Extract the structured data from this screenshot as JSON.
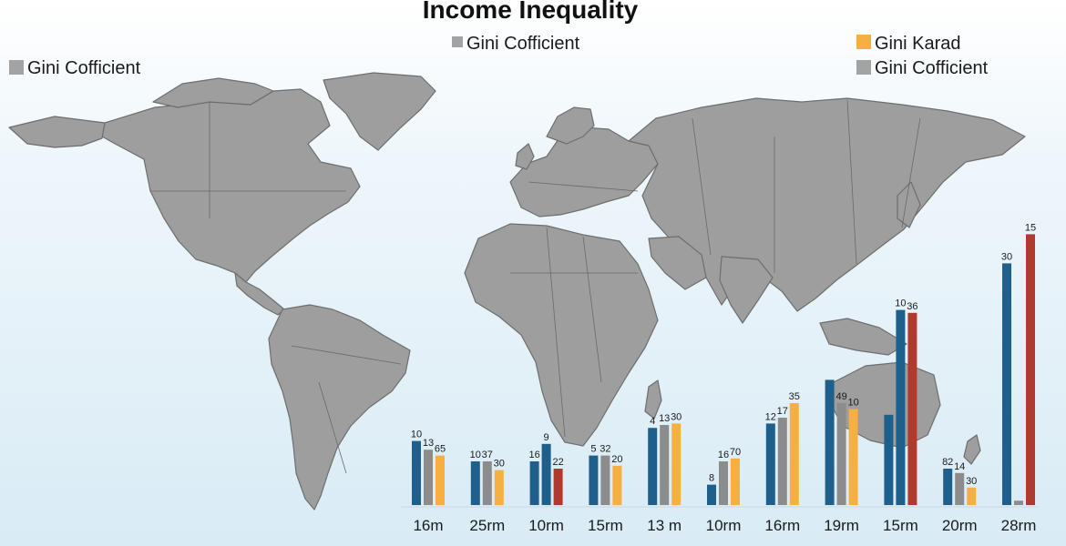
{
  "chart_data": {
    "type": "bar",
    "title": "Income Inequality",
    "legend": [
      {
        "name": "Gini Cofficient",
        "color": "#a3a3a3",
        "position": "top-left"
      },
      {
        "name": "Gini Cofficient",
        "color": "#a3a3a3",
        "position": "top-center"
      },
      {
        "name": "Gini Karad",
        "color": "#f5b041",
        "position": "top-right"
      },
      {
        "name": "Gini Cofficient",
        "color": "#a3a3a3",
        "position": "top-right"
      }
    ],
    "categories": [
      "16m",
      "25rm",
      "10rm",
      "15rm",
      "13 m",
      "10rm",
      "16rm",
      "19rm",
      "15rm",
      "20rm",
      "28rm"
    ],
    "groups": [
      {
        "bars": [
          {
            "value": 22,
            "color": "#1f5f8b",
            "label": "10"
          },
          {
            "value": 19,
            "color": "#8c8c8c",
            "label": "13"
          },
          {
            "value": 17,
            "color": "#f5b041",
            "label": "65"
          }
        ]
      },
      {
        "bars": [
          {
            "value": 15,
            "color": "#1f5f8b",
            "label": "10"
          },
          {
            "value": 15,
            "color": "#8c8c8c",
            "label": "37"
          },
          {
            "value": 12,
            "color": "#f5b041",
            "label": "30"
          }
        ]
      },
      {
        "bars": [
          {
            "value": 15,
            "color": "#1f5f8b",
            "label": "16"
          },
          {
            "value": 21,
            "color": "#1f5f8b",
            "label": "9"
          },
          {
            "value": 12.5,
            "color": "#b03a2e",
            "label": "22"
          }
        ]
      },
      {
        "bars": [
          {
            "value": 17,
            "color": "#1f5f8b",
            "label": "5"
          },
          {
            "value": 17,
            "color": "#8c8c8c",
            "label": "32"
          },
          {
            "value": 13.5,
            "color": "#f5b041",
            "label": "20"
          }
        ]
      },
      {
        "bars": [
          {
            "value": 26.5,
            "color": "#1f5f8b",
            "label": "4"
          },
          {
            "value": 27.5,
            "color": "#8c8c8c",
            "label": "13"
          },
          {
            "value": 28,
            "color": "#f5b041",
            "label": "30"
          }
        ]
      },
      {
        "bars": [
          {
            "value": 7,
            "color": "#1f5f8b",
            "label": "8"
          },
          {
            "value": 15,
            "color": "#8c8c8c",
            "label": "16"
          },
          {
            "value": 16,
            "color": "#f5b041",
            "label": "70"
          }
        ]
      },
      {
        "bars": [
          {
            "value": 28,
            "color": "#1f5f8b",
            "label": "12"
          },
          {
            "value": 30,
            "color": "#8c8c8c",
            "label": "17"
          },
          {
            "value": 35,
            "color": "#f5b041",
            "label": "35"
          }
        ]
      },
      {
        "bars": [
          {
            "value": 43,
            "color": "#1f5f8b",
            "label": ""
          },
          {
            "value": 35,
            "color": "#8c8c8c",
            "label": "49"
          },
          {
            "value": 33,
            "color": "#f5b041",
            "label": "10"
          }
        ]
      },
      {
        "bars": [
          {
            "value": 31,
            "color": "#1f5f8b",
            "label": ""
          },
          {
            "value": 67,
            "color": "#1f5f8b",
            "label": "10"
          },
          {
            "value": 66,
            "color": "#b03a2e",
            "label": "36"
          }
        ]
      },
      {
        "bars": [
          {
            "value": 12.5,
            "color": "#1f5f8b",
            "label": "82"
          },
          {
            "value": 11,
            "color": "#8c8c8c",
            "label": "14"
          },
          {
            "value": 6,
            "color": "#f5b041",
            "label": "30"
          }
        ]
      },
      {
        "bars": [
          {
            "value": 83,
            "color": "#1f5f8b",
            "label": "30"
          },
          {
            "value": 1.5,
            "color": "#8c8c8c",
            "label": ""
          },
          {
            "value": 93,
            "color": "#b03a2e",
            "label": "15"
          }
        ]
      }
    ],
    "ylim": [
      0,
      100
    ],
    "grid": false,
    "background": "world-map"
  }
}
